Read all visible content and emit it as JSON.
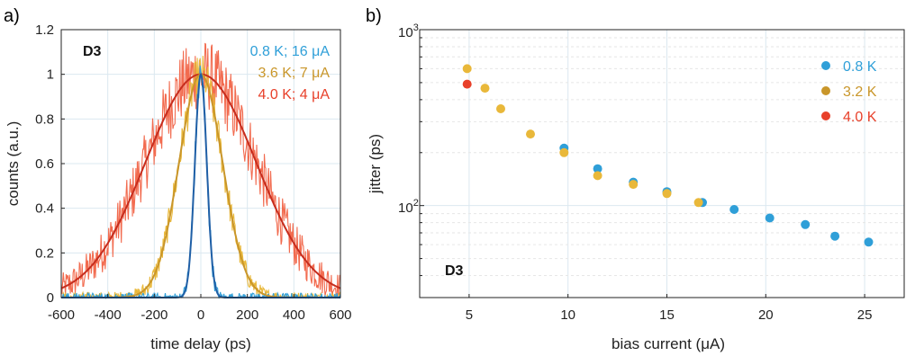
{
  "figure": {
    "panels": [
      {
        "id": "a",
        "letter": "a)",
        "badge": "D3",
        "xlabel": "time delay (ps)",
        "ylabel": "counts (a.u.)",
        "xticks": [
          "-600",
          "-400",
          "-200",
          "0",
          "200",
          "400",
          "600"
        ],
        "yticks": [
          "0",
          "0.2",
          "0.4",
          "0.6",
          "0.8",
          "1",
          "1.2"
        ],
        "legend": [
          {
            "label": "0.8 K; 16 μA",
            "color": "#2f9fd8"
          },
          {
            "label": "3.6 K; 7 μA",
            "color": "#c9962a"
          },
          {
            "label": "4.0 K; 4 μA",
            "color": "#e8402a"
          }
        ]
      },
      {
        "id": "b",
        "letter": "b)",
        "badge": "D3",
        "xlabel": "bias current (μA)",
        "ylabel": "jitter (ps)",
        "xticks": [
          "5",
          "10",
          "15",
          "20",
          "25"
        ],
        "yticks_major": [
          "10",
          "10"
        ],
        "yticks_sup": [
          "2",
          "3"
        ],
        "legend": [
          {
            "label": "0.8 K",
            "color": "#2f9fd8"
          },
          {
            "label": "3.2 K",
            "color": "#c9962a"
          },
          {
            "label": "4.0 K",
            "color": "#e8402a"
          }
        ]
      }
    ]
  },
  "chart_data": [
    {
      "type": "line",
      "xlabel": "time delay (ps)",
      "ylabel": "counts (a.u.)",
      "xlim": [
        -600,
        600
      ],
      "ylim": [
        0,
        1.2
      ],
      "grid": true,
      "legend_position": "top-right",
      "series": [
        {
          "name": "0.8 K; 16 μA",
          "fit_fwhm_ps": 60,
          "peak": 1.0,
          "noise": 0.06,
          "color_raw": "#2f9fd8",
          "color_fit": "#1f5fa6"
        },
        {
          "name": "3.6 K; 7 μA",
          "fit_fwhm_ps": 220,
          "peak": 1.0,
          "noise": 0.07,
          "color_raw": "#e9b83a",
          "color_fit": "#c9962a"
        },
        {
          "name": "4.0 K; 4 μA",
          "fit_fwhm_ps": 560,
          "peak": 1.0,
          "noise": 0.12,
          "color_raw": "#f26b4f",
          "color_fit": "#c62d1e"
        }
      ]
    },
    {
      "type": "scatter",
      "xlabel": "bias current (μA)",
      "ylabel": "jitter (ps)",
      "xlim": [
        2.5,
        27
      ],
      "ylim": [
        30,
        1000
      ],
      "yscale": "log",
      "grid": true,
      "legend_position": "top-right",
      "series": [
        {
          "name": "0.8 K",
          "color": "#2f9fd8",
          "x": [
            9.8,
            11.5,
            13.3,
            15.0,
            16.8,
            18.4,
            20.2,
            22.0,
            23.5,
            25.2
          ],
          "y": [
            212,
            162,
            136,
            120,
            104,
            95,
            85,
            78,
            67,
            62
          ]
        },
        {
          "name": "3.2 K",
          "color": "#e9b83a",
          "x": [
            4.9,
            5.8,
            6.6,
            8.1,
            9.8,
            11.5,
            13.3,
            15.0,
            16.6
          ],
          "y": [
            600,
            465,
            355,
            255,
            200,
            148,
            132,
            117,
            104
          ]
        },
        {
          "name": "4.0 K",
          "color": "#e8402a",
          "x": [
            4.9
          ],
          "y": [
            490
          ]
        }
      ]
    }
  ]
}
